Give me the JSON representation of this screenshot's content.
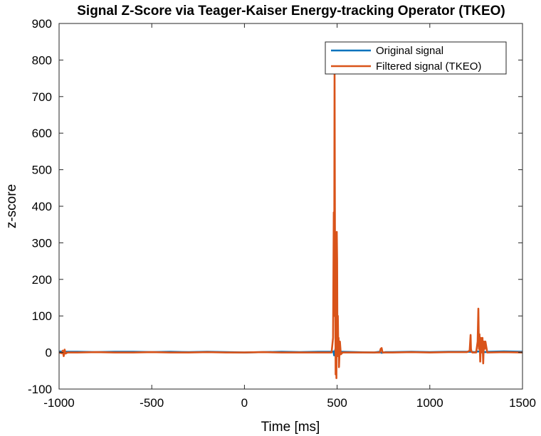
{
  "chart_data": {
    "type": "line",
    "title": "Signal Z-Score via Teager-Kaiser Energy-tracking Operator (TKEO)",
    "xlabel": "Time [ms]",
    "ylabel": "z-score",
    "xlim": [
      -1000,
      1500
    ],
    "ylim": [
      -100,
      900
    ],
    "xticks": [
      -1000,
      -500,
      0,
      500,
      1000,
      1500
    ],
    "yticks": [
      -100,
      0,
      100,
      200,
      300,
      400,
      500,
      600,
      700,
      800,
      900
    ],
    "xtick_labels": [
      "-1000",
      "-500",
      "0",
      "500",
      "1000",
      "1500"
    ],
    "ytick_labels": [
      "-100",
      "0",
      "100",
      "200",
      "300",
      "400",
      "500",
      "600",
      "700",
      "800",
      "900"
    ],
    "grid": false,
    "legend_position": "top-right",
    "series": [
      {
        "name": "Original signal",
        "color": "#0072BD",
        "x": [
          -1000,
          -990,
          -980,
          -960,
          -900,
          -800,
          -700,
          -600,
          -500,
          -400,
          -300,
          -200,
          -100,
          0,
          100,
          200,
          300,
          400,
          470,
          480,
          484,
          488,
          492,
          496,
          500,
          505,
          510,
          520,
          600,
          700,
          730,
          740,
          760,
          800,
          900,
          1000,
          1100,
          1200,
          1220,
          1240,
          1260,
          1280,
          1300,
          1320,
          1400,
          1500
        ],
        "y": [
          2,
          3,
          2,
          2,
          2,
          1,
          2,
          2,
          1,
          2,
          1,
          2,
          1,
          0,
          1,
          2,
          1,
          2,
          2,
          3,
          -8,
          4,
          12,
          -6,
          3,
          2,
          1,
          2,
          1,
          0,
          2,
          -1,
          1,
          1,
          2,
          1,
          2,
          2,
          2,
          1,
          3,
          2,
          1,
          2,
          3,
          2
        ]
      },
      {
        "name": "Filtered signal (TKEO)",
        "color": "#D95319",
        "x": [
          -1000,
          -985,
          -980,
          -975,
          -970,
          -965,
          -955,
          -900,
          -800,
          -700,
          -600,
          -500,
          -400,
          -300,
          -200,
          -100,
          0,
          100,
          200,
          300,
          400,
          470,
          478,
          482,
          484,
          486,
          488,
          490,
          492,
          494,
          496,
          498,
          500,
          502,
          504,
          506,
          508,
          510,
          515,
          520,
          530,
          600,
          700,
          730,
          735,
          740,
          745,
          760,
          800,
          900,
          1000,
          1100,
          1200,
          1215,
          1220,
          1222,
          1225,
          1230,
          1250,
          1258,
          1262,
          1265,
          1268,
          1272,
          1276,
          1280,
          1284,
          1288,
          1292,
          1296,
          1300,
          1310,
          1400,
          1500
        ],
        "y": [
          0,
          -2,
          5,
          -10,
          8,
          -3,
          0,
          0,
          1,
          0,
          0,
          1,
          0,
          0,
          1,
          0,
          0,
          1,
          0,
          0,
          0,
          0,
          40,
          383,
          100,
          770,
          350,
          180,
          -60,
          110,
          -70,
          330,
          250,
          -10,
          100,
          20,
          40,
          -40,
          30,
          -5,
          0,
          0,
          0,
          0,
          10,
          12,
          0,
          0,
          0,
          1,
          0,
          1,
          1,
          5,
          48,
          10,
          2,
          0,
          0,
          30,
          120,
          10,
          50,
          -25,
          40,
          0,
          40,
          -30,
          30,
          10,
          30,
          0,
          1,
          0
        ]
      }
    ]
  }
}
